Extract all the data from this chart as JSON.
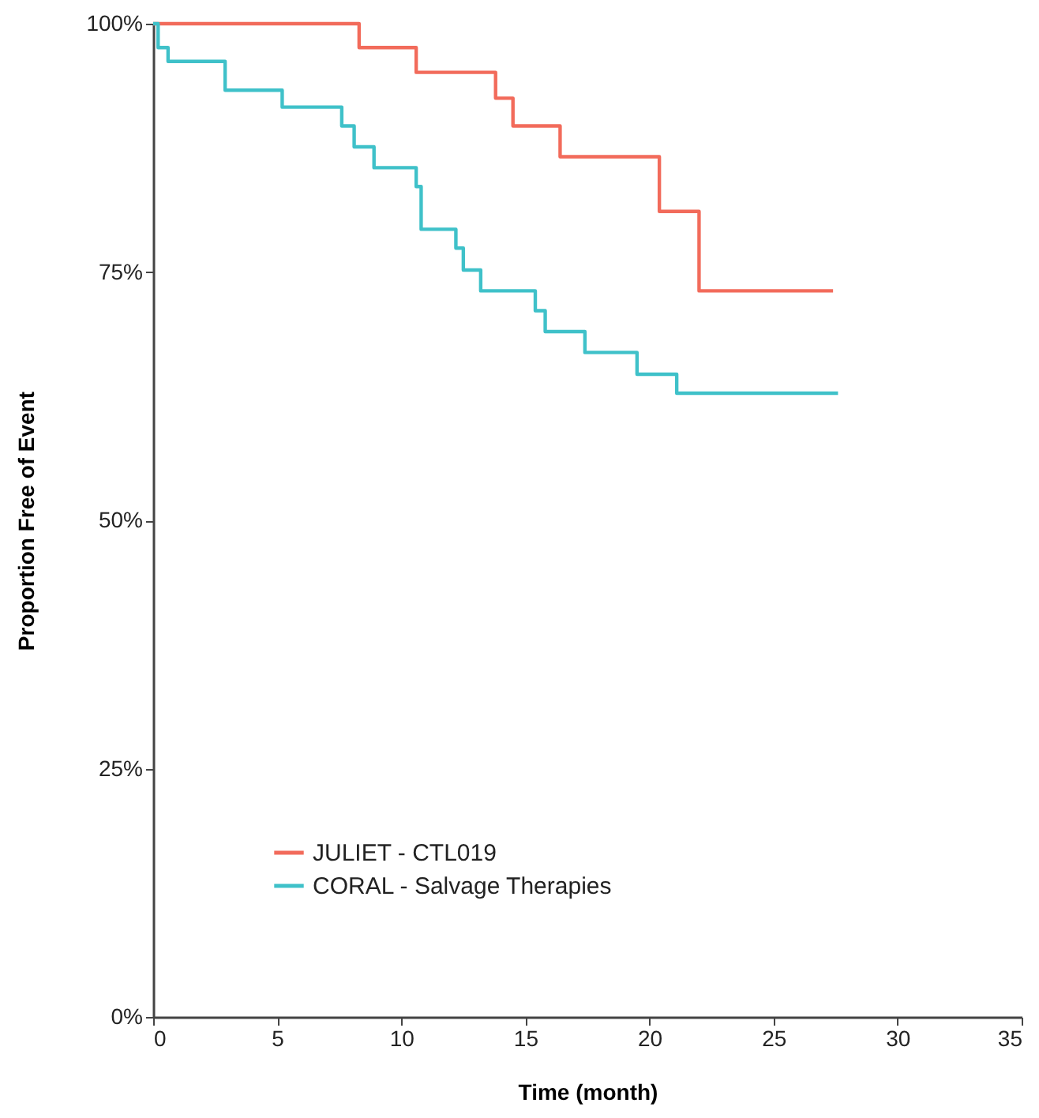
{
  "chart_data": {
    "type": "step",
    "xlabel": "Time (month)",
    "ylabel": "Proportion Free of Event",
    "xlim": [
      0,
      35
    ],
    "xticks": [
      0,
      5,
      10,
      15,
      20,
      25,
      30,
      35
    ],
    "ylim": [
      0,
      100
    ],
    "yticks": [
      {
        "value": 0,
        "label": "0%"
      },
      {
        "value": 25,
        "label": "25%"
      },
      {
        "value": 50,
        "label": "50%"
      },
      {
        "value": 75,
        "label": "75%"
      },
      {
        "value": 100,
        "label": "100%"
      }
    ],
    "grid": false,
    "legend": "bottom left",
    "marker": "none",
    "line_style": "solid",
    "series": [
      {
        "name": "JULIET - CTL019",
        "color": "#f26b5b",
        "x": [
          0,
          8.3,
          10.6,
          13.8,
          14.5,
          16.4,
          20.4,
          22.0,
          27.4
        ],
        "values": [
          100,
          97.6,
          95.1,
          92.5,
          89.7,
          86.6,
          81.1,
          73.1,
          73.1
        ]
      },
      {
        "name": "CORAL - Salvage Therapies",
        "color": "#3fc1c9",
        "x": [
          0,
          0.2,
          0.6,
          2.9,
          5.2,
          7.6,
          8.1,
          8.9,
          10.6,
          10.8,
          12.2,
          12.5,
          13.2,
          15.4,
          15.8,
          17.4,
          19.5,
          21.1,
          27.6
        ],
        "values": [
          100,
          97.6,
          96.2,
          93.3,
          91.6,
          89.7,
          87.6,
          85.5,
          83.6,
          79.3,
          77.4,
          75.2,
          73.1,
          71.1,
          69.0,
          66.9,
          64.7,
          62.8,
          62.8
        ]
      }
    ]
  }
}
